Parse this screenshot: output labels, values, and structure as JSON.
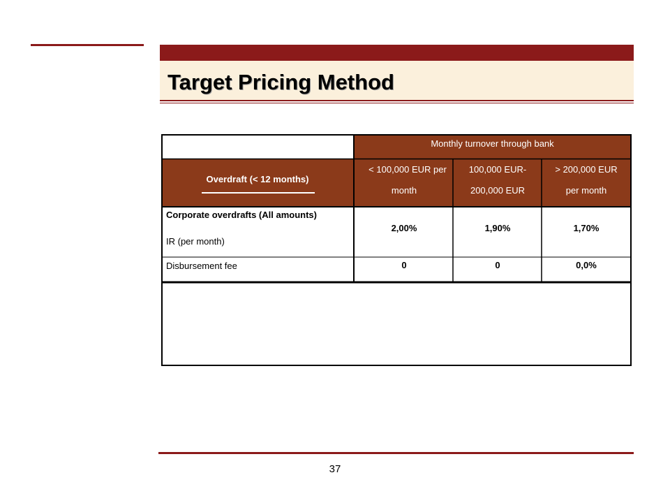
{
  "slide": {
    "title": "Target Pricing Method",
    "page_number": "37"
  },
  "table": {
    "group_header": "Monthly turnover through bank",
    "row_header_title": "Overdraft (< 12 months)",
    "columns": [
      {
        "line1": "< 100,000 EUR per",
        "line2": "month"
      },
      {
        "line1": "100,000 EUR-",
        "line2": "200,000 EUR"
      },
      {
        "line1": "> 200,000 EUR",
        "line2": "per month"
      }
    ],
    "rows": [
      {
        "label_line1": "Corporate overdrafts  (All amounts)",
        "label_line2": "IR (per month)",
        "values": [
          "2,00%",
          "1,90%",
          "1,70%"
        ]
      },
      {
        "label_line1": "Disbursement fee",
        "values": [
          "0",
          "0",
          "0,0%"
        ]
      }
    ]
  },
  "colors": {
    "accent": "#8b1a1a",
    "header_fill": "#8b3a1a",
    "title_band": "#fbf0dc"
  }
}
